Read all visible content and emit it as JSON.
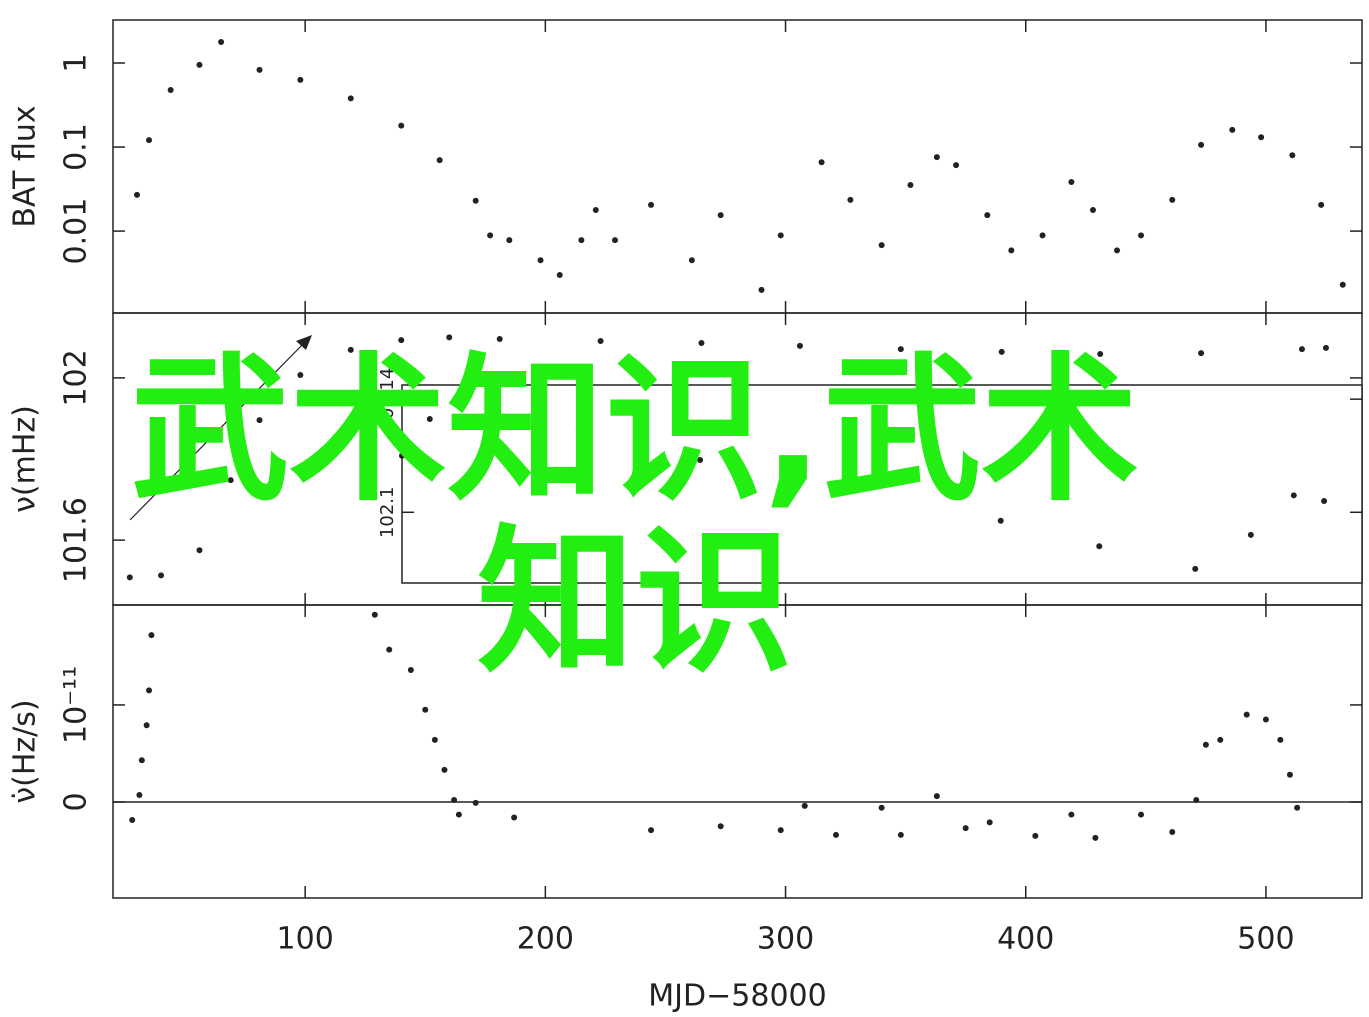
{
  "chart_data": [
    {
      "type": "scatter",
      "ylabel": "BAT flux",
      "ylog": true,
      "ylim": [
        0.00106,
        3.25
      ],
      "yticks": [
        0.01,
        0.1,
        1
      ],
      "color": "#222222",
      "x": [
        30,
        35,
        44,
        56,
        65,
        81,
        98,
        119,
        140,
        156,
        171,
        177,
        185,
        198,
        206,
        215,
        221,
        229,
        244,
        261,
        273,
        290,
        298,
        315,
        327,
        340,
        352,
        363,
        371,
        384,
        394,
        407,
        419,
        428,
        438,
        448,
        461,
        473,
        486,
        498,
        511,
        523,
        532
      ],
      "values": [
        0.027,
        0.121,
        0.477,
        0.95,
        1.78,
        0.83,
        0.63,
        0.38,
        0.18,
        0.07,
        0.023,
        0.0089,
        0.0078,
        0.0045,
        0.003,
        0.0078,
        0.0178,
        0.0078,
        0.0205,
        0.0045,
        0.0155,
        0.002,
        0.0089,
        0.066,
        0.0235,
        0.0068,
        0.0354,
        0.076,
        0.061,
        0.0155,
        0.0059,
        0.0089,
        0.0384,
        0.0178,
        0.0059,
        0.0089,
        0.0235,
        0.106,
        0.16,
        0.131,
        0.08,
        0.0205,
        0.0023
      ]
    },
    {
      "type": "scatter",
      "ylabel": "ν(mHz)",
      "ylim": [
        101.44,
        102.16
      ],
      "yticks": [
        101.6,
        102
      ],
      "color": "#222222",
      "x": [
        27,
        40,
        56,
        69,
        81,
        98,
        119,
        140,
        160,
        181,
        223,
        265,
        306,
        348,
        390,
        431,
        473,
        515,
        525
      ],
      "values": [
        101.508,
        101.513,
        101.575,
        101.748,
        101.896,
        102.007,
        102.069,
        102.093,
        102.1,
        102.096,
        102.091,
        102.086,
        102.079,
        102.071,
        102.064,
        102.059,
        102.061,
        102.071,
        102.074
      ]
    },
    {
      "type": "scatter",
      "ylabel": "ν̇(Hz/s)",
      "xlabel": "MJD−58000",
      "xlim": [
        20,
        540
      ],
      "xticks": [
        100,
        200,
        300,
        400,
        500
      ],
      "ylim": [
        -9.9e-12,
        2.03e-11
      ],
      "yticks": [
        0,
        {
          "value": 1e-11,
          "label": "10⁻¹¹"
        }
      ],
      "color": "#222222",
      "x": [
        28,
        31,
        32,
        34,
        35,
        36,
        129,
        135,
        144,
        150,
        154,
        158,
        162,
        164,
        171,
        187,
        244,
        273,
        298,
        308,
        321,
        340,
        348,
        363,
        375,
        385,
        404,
        419,
        429,
        448,
        461,
        471,
        475,
        481,
        492,
        500,
        506,
        510,
        513
      ],
      "values": [
        -1.86e-12,
        7.2e-13,
        4.3e-12,
        7.9e-12,
        1.15e-11,
        1.72e-11,
        1.93e-11,
        1.57e-11,
        1.36e-11,
        9.5e-12,
        6.4e-12,
        3.3e-12,
        2e-13,
        -1.3e-12,
        -1e-13,
        -1.6e-12,
        -2.9e-12,
        -2.5e-12,
        -2.9e-12,
        -4e-13,
        -3.4e-12,
        -6e-13,
        -3.4e-12,
        6e-13,
        -2.7e-12,
        -2.1e-12,
        -3.5e-12,
        -1.3e-12,
        -3.7e-12,
        -1.3e-12,
        -3.1e-12,
        2e-13,
        5.9e-12,
        6.4e-12,
        9e-12,
        8.5e-12,
        6.4e-12,
        2.8e-12,
        -6e-13
      ]
    },
    {
      "type": "scatter",
      "xlim": [
        150,
        530
      ],
      "ylim": [
        102.075,
        102.145
      ],
      "yticks": [
        102.1,
        102.14
      ],
      "color": "#222222",
      "x": [
        150,
        161,
        173,
        220,
        268,
        327,
        387,
        426,
        464,
        486,
        503,
        515
      ],
      "values": [
        102.12,
        102.133,
        102.138,
        102.129,
        102.1185,
        102.108,
        102.097,
        102.088,
        102.08,
        102.092,
        102.106,
        102.104
      ]
    }
  ],
  "overlay_text": "武术知识,武术知识"
}
